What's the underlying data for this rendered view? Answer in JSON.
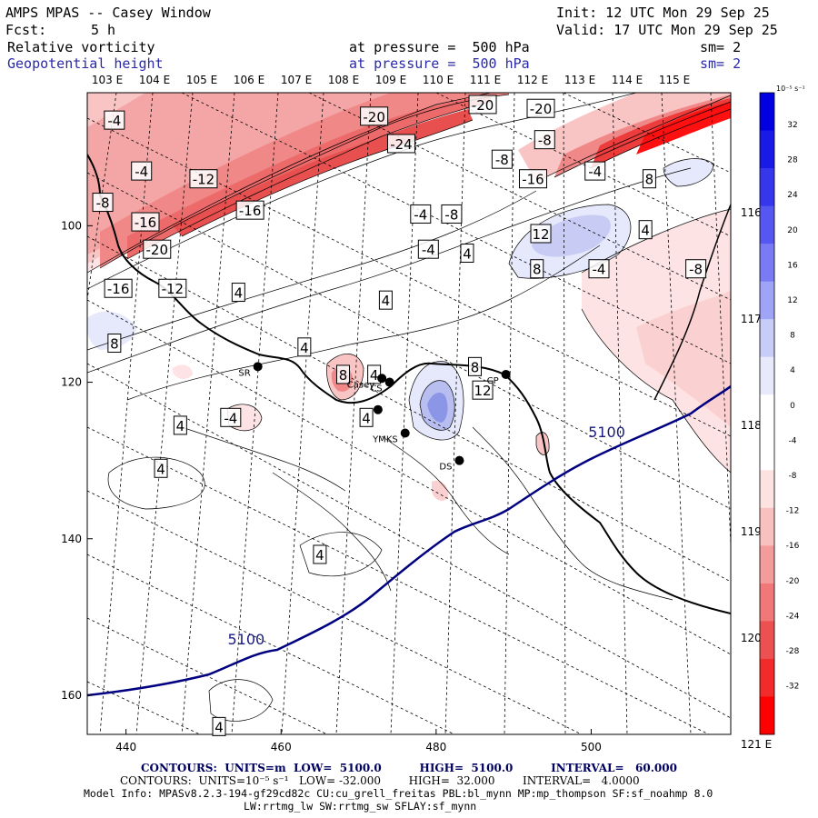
{
  "header": {
    "title": "AMPS MPAS -- Casey Window",
    "init": "Init: 12 UTC Mon 29 Sep 25",
    "fcst_label": "Fcst:",
    "fcst_value": "5 h",
    "valid": "Valid: 17 UTC Mon 29 Sep 25",
    "field1": {
      "name": "Relative vorticity",
      "level": "at pressure =  500 hPa",
      "smooth": "sm= 2"
    },
    "field2": {
      "name": "Geopotential height",
      "level": "at pressure =  500 hPa",
      "smooth": "sm= 2"
    }
  },
  "map": {
    "top_lon_labels": [
      "103 E",
      "104 E",
      "105 E",
      "106 E",
      "107 E",
      "108 E",
      "109 E",
      "110 E",
      "111 E",
      "112 E",
      "113 E",
      "114 E",
      "115 E"
    ],
    "right_lon_labels": [
      "116 E",
      "117 E",
      "118 E",
      "119 E",
      "120 E",
      "121 E"
    ],
    "x_ticks": [
      440,
      460,
      480,
      500
    ],
    "y_ticks": [
      100,
      120,
      140,
      160
    ],
    "xlim": [
      435,
      518
    ],
    "ylim": [
      83,
      165
    ],
    "vort_contour_labels": [
      {
        "v": "-4",
        "x": 438.5,
        "y": 86.5
      },
      {
        "v": "-20",
        "x": 472,
        "y": 86
      },
      {
        "v": "-20",
        "x": 486,
        "y": 84.5
      },
      {
        "v": "-20",
        "x": 493.5,
        "y": 85
      },
      {
        "v": "-24",
        "x": 475.5,
        "y": 89.5
      },
      {
        "v": "-8",
        "x": 494,
        "y": 89
      },
      {
        "v": "-8",
        "x": 488.5,
        "y": 91.5
      },
      {
        "v": "-4",
        "x": 500.5,
        "y": 93
      },
      {
        "v": "-4",
        "x": 442,
        "y": 93
      },
      {
        "v": "-12",
        "x": 450,
        "y": 94
      },
      {
        "v": "-16",
        "x": 492.5,
        "y": 94
      },
      {
        "v": "8",
        "x": 507.5,
        "y": 94
      },
      {
        "v": "-8",
        "x": 437,
        "y": 97
      },
      {
        "v": "-16",
        "x": 456,
        "y": 98
      },
      {
        "v": "-4",
        "x": 478,
        "y": 98.5
      },
      {
        "v": "-8",
        "x": 482,
        "y": 98.5
      },
      {
        "v": "-16",
        "x": 442.5,
        "y": 99.5
      },
      {
        "v": "12",
        "x": 493.5,
        "y": 101
      },
      {
        "v": "4",
        "x": 507,
        "y": 100.5
      },
      {
        "v": "-20",
        "x": 444,
        "y": 103
      },
      {
        "v": "-4",
        "x": 479,
        "y": 103
      },
      {
        "v": "4",
        "x": 484,
        "y": 103.5
      },
      {
        "v": "8",
        "x": 493,
        "y": 105.5
      },
      {
        "v": "-4",
        "x": 501,
        "y": 105.5
      },
      {
        "v": "-8",
        "x": 513.5,
        "y": 105.5
      },
      {
        "v": "-16",
        "x": 439,
        "y": 108
      },
      {
        "v": "-12",
        "x": 446,
        "y": 108
      },
      {
        "v": "4",
        "x": 454.5,
        "y": 108.5
      },
      {
        "v": "4",
        "x": 473.5,
        "y": 109.5
      },
      {
        "v": "8",
        "x": 438.5,
        "y": 115
      },
      {
        "v": "4",
        "x": 463,
        "y": 115.5
      },
      {
        "v": "8",
        "x": 468,
        "y": 119
      },
      {
        "v": "4",
        "x": 472,
        "y": 119
      },
      {
        "v": "8",
        "x": 485,
        "y": 118
      },
      {
        "v": "12",
        "x": 486,
        "y": 121
      },
      {
        "v": "4",
        "x": 447,
        "y": 125.5
      },
      {
        "v": "-4",
        "x": 453.5,
        "y": 124.5
      },
      {
        "v": "4",
        "x": 471,
        "y": 124.5
      },
      {
        "v": "4",
        "x": 444.5,
        "y": 131
      },
      {
        "v": "4",
        "x": 465,
        "y": 142
      },
      {
        "v": "4",
        "x": 452,
        "y": 164
      }
    ],
    "height_contour_labels": [
      {
        "v": "5100",
        "x": 502,
        "y": 127
      },
      {
        "v": "5100",
        "x": 455.5,
        "y": 153.5
      }
    ],
    "stations": [
      {
        "name": "SR",
        "x": 457,
        "y": 118
      },
      {
        "name": "Casey",
        "x": 473,
        "y": 119.5
      },
      {
        "name": "CS",
        "x": 474,
        "y": 120
      },
      {
        "name": "CP",
        "x": 489,
        "y": 119
      },
      {
        "name": "",
        "x": 472.5,
        "y": 123.5
      },
      {
        "name": "YMKS",
        "x": 476,
        "y": 126.5
      },
      {
        "name": "DS",
        "x": 483,
        "y": 130
      }
    ]
  },
  "colorbar": {
    "units_label": "10⁻⁵ s⁻¹",
    "ticks": [
      "32",
      "28",
      "24",
      "20",
      "16",
      "12",
      "8",
      "4",
      "0",
      "-4",
      "-8",
      "-12",
      "-16",
      "-20",
      "-24",
      "-28",
      "-32"
    ],
    "colors": {
      "blue_dark": "#0000e0",
      "red_dark": "#ff0000"
    }
  },
  "footer": {
    "line1": "CONTOURS:  UNITS=m  LOW=  5100.0          HIGH=  5100.0          INTERVAL=   60.000",
    "line2": "CONTOURS:  UNITS=10⁻⁵ s⁻¹   LOW= -32.000        HIGH=  32.000        INTERVAL=   4.0000",
    "line3": "Model Info: MPASv8.2.3-194-gf29cd82c CU:cu_grell_freitas PBL:bl_mynn MP:mp_thompson SF:sf_noahmp 8.0",
    "line4": "LW:rrtmg_lw SW:rrtmg_sw SFLAY:sf_mynn"
  }
}
